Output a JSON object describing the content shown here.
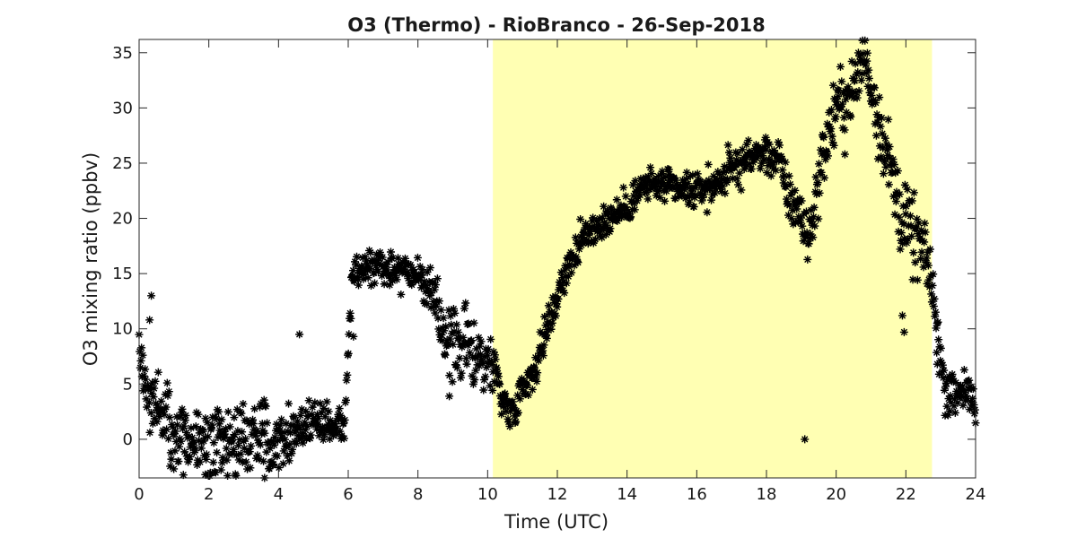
{
  "chart_data": {
    "type": "scatter",
    "title": "O3 (Thermo) - RioBranco - 26-Sep-2018",
    "xlabel": "Time (UTC)",
    "ylabel": "O3 mixing ratio (ppbv)",
    "xlim": [
      0,
      24
    ],
    "ylim": [
      -3.5,
      36.2
    ],
    "xticks": [
      0,
      2,
      4,
      6,
      8,
      10,
      12,
      14,
      16,
      18,
      20,
      22,
      24
    ],
    "xtick_labels": [
      "0",
      "2",
      "4",
      "6",
      "8",
      "10",
      "12",
      "14",
      "16",
      "18",
      "20",
      "22",
      "24"
    ],
    "yticks": [
      0,
      5,
      10,
      15,
      20,
      25,
      30,
      35
    ],
    "ytick_labels": [
      "0",
      "5",
      "10",
      "15",
      "20",
      "25",
      "30",
      "35"
    ],
    "grid": false,
    "marker": "asterisk",
    "marker_color": "#000000",
    "shaded_region": {
      "x": [
        10.15,
        22.75
      ],
      "color": "#ffffb3"
    },
    "series": [
      {
        "trend": [
          [
            0.0,
            8.0
          ],
          [
            0.2,
            4.5
          ],
          [
            0.4,
            3.5
          ],
          [
            0.6,
            3.0
          ],
          [
            0.8,
            2.5
          ],
          [
            1.0,
            0.5
          ],
          [
            1.3,
            0.0
          ],
          [
            1.6,
            -0.5
          ],
          [
            2.0,
            -1.0
          ],
          [
            2.4,
            -0.5
          ],
          [
            2.8,
            0.0
          ],
          [
            3.2,
            0.3
          ],
          [
            3.6,
            0.0
          ],
          [
            4.0,
            0.3
          ],
          [
            4.4,
            0.5
          ],
          [
            4.8,
            1.5
          ],
          [
            5.2,
            1.8
          ],
          [
            5.6,
            1.2
          ],
          [
            5.9,
            1.5
          ],
          [
            6.1,
            14.5
          ],
          [
            6.4,
            15.5
          ],
          [
            6.8,
            16.0
          ],
          [
            7.2,
            15.5
          ],
          [
            7.6,
            15.5
          ],
          [
            8.0,
            15.0
          ],
          [
            8.3,
            13.5
          ],
          [
            8.6,
            11.0
          ],
          [
            9.0,
            8.5
          ],
          [
            9.4,
            8.5
          ],
          [
            9.8,
            7.5
          ],
          [
            10.2,
            6.5
          ],
          [
            10.4,
            4.0
          ],
          [
            10.6,
            2.5
          ],
          [
            10.8,
            3.0
          ],
          [
            11.0,
            5.0
          ],
          [
            11.3,
            6.0
          ],
          [
            11.6,
            9.0
          ],
          [
            11.9,
            12.0
          ],
          [
            12.2,
            15.0
          ],
          [
            12.6,
            17.5
          ],
          [
            13.0,
            19.0
          ],
          [
            13.5,
            20.0
          ],
          [
            14.0,
            21.0
          ],
          [
            14.5,
            23.0
          ],
          [
            15.0,
            23.0
          ],
          [
            15.5,
            22.5
          ],
          [
            16.0,
            22.5
          ],
          [
            16.5,
            23.0
          ],
          [
            17.0,
            24.5
          ],
          [
            17.5,
            25.5
          ],
          [
            18.0,
            26.0
          ],
          [
            18.4,
            25.0
          ],
          [
            18.6,
            22.0
          ],
          [
            18.9,
            21.0
          ],
          [
            19.2,
            18.0
          ],
          [
            19.4,
            21.5
          ],
          [
            19.6,
            25.5
          ],
          [
            19.9,
            29.0
          ],
          [
            20.2,
            31.0
          ],
          [
            20.5,
            31.5
          ],
          [
            20.8,
            35.0
          ],
          [
            21.0,
            32.0
          ],
          [
            21.3,
            28.0
          ],
          [
            21.6,
            24.0
          ],
          [
            21.9,
            20.0
          ],
          [
            22.2,
            18.5
          ],
          [
            22.5,
            17.0
          ],
          [
            22.7,
            15.0
          ],
          [
            22.9,
            9.5
          ],
          [
            23.1,
            5.0
          ],
          [
            23.4,
            4.0
          ],
          [
            23.7,
            5.0
          ],
          [
            24.0,
            2.0
          ]
        ],
        "spread": [
          [
            0.0,
            2.0
          ],
          [
            1.0,
            3.0
          ],
          [
            3.0,
            2.5
          ],
          [
            4.5,
            2.0
          ],
          [
            5.5,
            1.0
          ],
          [
            6.1,
            1.5
          ],
          [
            8.0,
            1.5
          ],
          [
            9.0,
            2.5
          ],
          [
            10.0,
            2.5
          ],
          [
            10.5,
            1.0
          ],
          [
            12.0,
            1.5
          ],
          [
            15.0,
            1.2
          ],
          [
            18.0,
            1.5
          ],
          [
            19.0,
            2.0
          ],
          [
            20.5,
            2.5
          ],
          [
            22.0,
            3.0
          ],
          [
            23.0,
            2.0
          ],
          [
            24.0,
            1.5
          ]
        ],
        "outliers": [
          [
            0.35,
            13.0
          ],
          [
            0.3,
            10.8
          ],
          [
            4.6,
            9.5
          ],
          [
            6.15,
            9.3
          ],
          [
            8.9,
            3.9
          ],
          [
            19.1,
            0.0
          ],
          [
            20.25,
            25.8
          ],
          [
            21.9,
            11.2
          ],
          [
            21.95,
            9.7
          ],
          [
            22.9,
            10.5
          ],
          [
            3.6,
            -3.5
          ],
          [
            1.9,
            -3.2
          ]
        ]
      }
    ]
  }
}
